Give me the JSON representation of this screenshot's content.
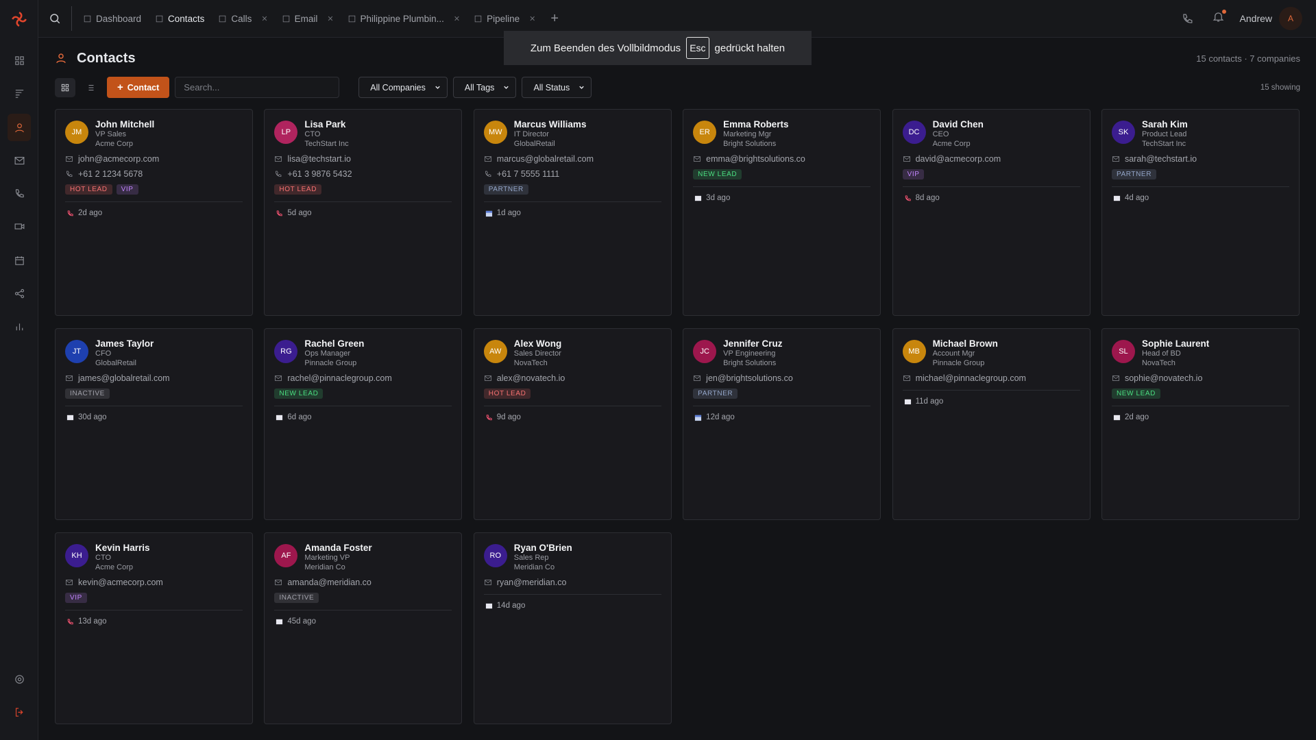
{
  "topbar": {
    "tabs": [
      "Dashboard",
      "Contacts",
      "Calls",
      "Email",
      "Philippine Plumbin...",
      "Pipeline"
    ],
    "user_name": "Andrew",
    "user_initial": "A"
  },
  "fullscreen_notice": {
    "before": "Zum Beenden des Vollbildmodus",
    "key": "Esc",
    "after": "gedrückt halten"
  },
  "header": {
    "title": "Contacts",
    "summary": "15 contacts · 7 companies",
    "showing": "15 showing"
  },
  "toolbar": {
    "add_button": "Contact",
    "search_placeholder": "Search...",
    "filters": [
      "All Companies",
      "All Tags",
      "All Status"
    ]
  },
  "contacts": [
    {
      "initials": "JM",
      "avatar_color": "#c8860d",
      "name": "John Mitchell",
      "role": "VP Sales",
      "company": "Acme Corp",
      "email": "john@acmecorp.com",
      "phone": "+61 2 1234 5678",
      "tags": [
        {
          "label": "HOT LEAD",
          "color": "#f87171"
        },
        {
          "label": "VIP",
          "color": "#c084fc"
        }
      ],
      "activity_icon": "call",
      "last_activity": "2d ago"
    },
    {
      "initials": "LP",
      "avatar_color": "#b0245e",
      "name": "Lisa Park",
      "role": "CTO",
      "company": "TechStart Inc",
      "email": "lisa@techstart.io",
      "phone": "+61 3 9876 5432",
      "tags": [
        {
          "label": "HOT LEAD",
          "color": "#f87171"
        }
      ],
      "activity_icon": "call",
      "last_activity": "5d ago"
    },
    {
      "initials": "MW",
      "avatar_color": "#c8860d",
      "name": "Marcus Williams",
      "role": "IT Director",
      "company": "GlobalRetail",
      "email": "marcus@globalretail.com",
      "phone": "+61 7 5555 1111",
      "tags": [
        {
          "label": "PARTNER",
          "color": "#93a5c8"
        }
      ],
      "activity_icon": "calendar",
      "last_activity": "1d ago"
    },
    {
      "initials": "ER",
      "avatar_color": "#c8860d",
      "name": "Emma Roberts",
      "role": "Marketing Mgr",
      "company": "Bright Solutions",
      "email": "emma@brightsolutions.co",
      "tags": [
        {
          "label": "NEW LEAD",
          "color": "#4ade80"
        }
      ],
      "activity_icon": "email",
      "last_activity": "3d ago"
    },
    {
      "initials": "DC",
      "avatar_color": "#3b1d8f",
      "name": "David Chen",
      "role": "CEO",
      "company": "Acme Corp",
      "email": "david@acmecorp.com",
      "tags": [
        {
          "label": "VIP",
          "color": "#c084fc"
        }
      ],
      "activity_icon": "call",
      "last_activity": "8d ago"
    },
    {
      "initials": "SK",
      "avatar_color": "#3b1d8f",
      "name": "Sarah Kim",
      "role": "Product Lead",
      "company": "TechStart Inc",
      "email": "sarah@techstart.io",
      "tags": [
        {
          "label": "PARTNER",
          "color": "#93a5c8"
        }
      ],
      "activity_icon": "email",
      "last_activity": "4d ago"
    },
    {
      "initials": "JT",
      "avatar_color": "#1e40af",
      "name": "James Taylor",
      "role": "CFO",
      "company": "GlobalRetail",
      "email": "james@globalretail.com",
      "tags": [
        {
          "label": "INACTIVE",
          "color": "#a1a1aa"
        }
      ],
      "activity_icon": "email",
      "last_activity": "30d ago"
    },
    {
      "initials": "RG",
      "avatar_color": "#3b1d8f",
      "name": "Rachel Green",
      "role": "Ops Manager",
      "company": "Pinnacle Group",
      "email": "rachel@pinnaclegroup.com",
      "tags": [
        {
          "label": "NEW LEAD",
          "color": "#4ade80"
        }
      ],
      "activity_icon": "email",
      "last_activity": "6d ago"
    },
    {
      "initials": "AW",
      "avatar_color": "#c8860d",
      "name": "Alex Wong",
      "role": "Sales Director",
      "company": "NovaTech",
      "email": "alex@novatech.io",
      "tags": [
        {
          "label": "HOT LEAD",
          "color": "#f87171"
        }
      ],
      "activity_icon": "call",
      "last_activity": "9d ago"
    },
    {
      "initials": "JC",
      "avatar_color": "#9d174d",
      "name": "Jennifer Cruz",
      "role": "VP Engineering",
      "company": "Bright Solutions",
      "email": "jen@brightsolutions.co",
      "tags": [
        {
          "label": "PARTNER",
          "color": "#93a5c8"
        }
      ],
      "activity_icon": "calendar",
      "last_activity": "12d ago"
    },
    {
      "initials": "MB",
      "avatar_color": "#c8860d",
      "name": "Michael Brown",
      "role": "Account Mgr",
      "company": "Pinnacle Group",
      "email": "michael@pinnaclegroup.com",
      "tags": [],
      "activity_icon": "email",
      "last_activity": "11d ago"
    },
    {
      "initials": "SL",
      "avatar_color": "#9d174d",
      "name": "Sophie Laurent",
      "role": "Head of BD",
      "company": "NovaTech",
      "email": "sophie@novatech.io",
      "tags": [
        {
          "label": "NEW LEAD",
          "color": "#4ade80"
        }
      ],
      "activity_icon": "email",
      "last_activity": "2d ago"
    },
    {
      "initials": "KH",
      "avatar_color": "#3b1d8f",
      "name": "Kevin Harris",
      "role": "CTO",
      "company": "Acme Corp",
      "email": "kevin@acmecorp.com",
      "tags": [
        {
          "label": "VIP",
          "color": "#c084fc"
        }
      ],
      "activity_icon": "call",
      "last_activity": "13d ago"
    },
    {
      "initials": "AF",
      "avatar_color": "#9d174d",
      "name": "Amanda Foster",
      "role": "Marketing VP",
      "company": "Meridian Co",
      "email": "amanda@meridian.co",
      "tags": [
        {
          "label": "INACTIVE",
          "color": "#a1a1aa"
        }
      ],
      "activity_icon": "email",
      "last_activity": "45d ago"
    },
    {
      "initials": "RO",
      "avatar_color": "#3b1d8f",
      "name": "Ryan O'Brien",
      "role": "Sales Rep",
      "company": "Meridian Co",
      "email": "ryan@meridian.co",
      "tags": [],
      "activity_icon": "email",
      "last_activity": "14d ago"
    }
  ]
}
